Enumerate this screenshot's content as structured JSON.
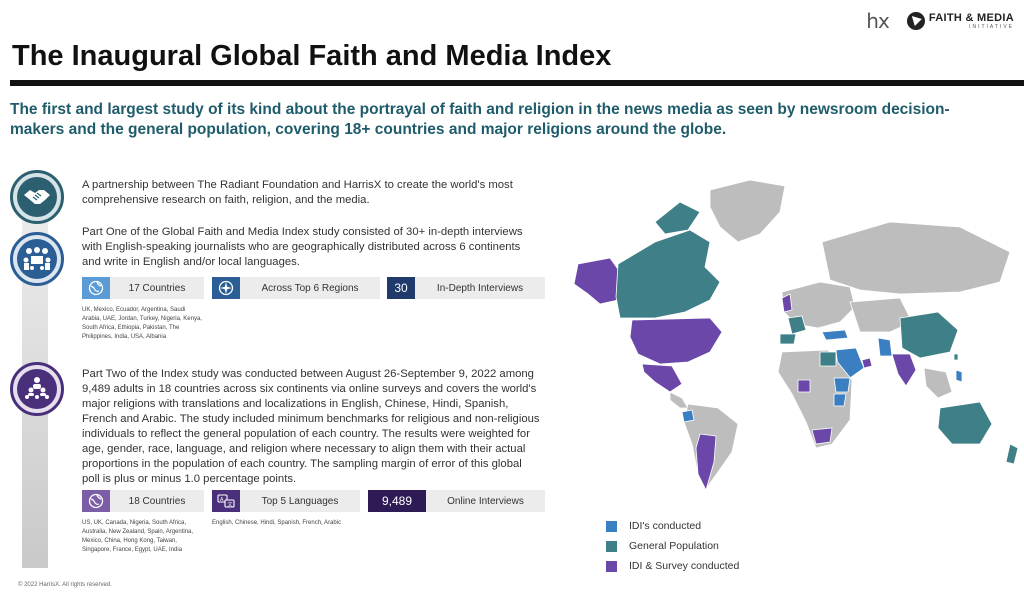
{
  "header": {
    "logo_hx": "hx",
    "logo_fm_line1": "FAITH & MEDIA",
    "logo_fm_line2": "INITIATIVE",
    "title": "The Inaugural Global Faith and Media Index",
    "subtitle": "The first and largest study of its kind about the portrayal of faith and religion in the news media as seen by newsroom decision-makers and the general population, covering 18+ countries and major religions around the globe."
  },
  "section1": {
    "text": "A partnership between The Radiant Foundation and HarrisX to create the world's most comprehensive research on faith, religion, and the media.",
    "icon": "handshake-icon"
  },
  "section2": {
    "text": "Part One of the Global Faith and Media Index study consisted of 30+ in-depth interviews with English-speaking journalists who are geographically distributed across 6 continents and write in English and/or local languages.",
    "icon": "group-meeting-icon",
    "stats": [
      {
        "badge_icon": "globe-icon",
        "label": "17 Countries",
        "color": "#5b9bd5"
      },
      {
        "badge_icon": "compass-icon",
        "label": "Across Top 6 Regions",
        "color": "#2a5e94"
      },
      {
        "badge_value": "30",
        "label": "In-Depth Interviews",
        "color": "#1f3a6b"
      }
    ],
    "countries": "UK, Mexico, Ecuador, Argentina, Saudi Arabia, UAE, Jordan, Turkey, Nigeria, Kenya, South Africa, Ethiopia, Pakistan, The Philippines, India, USA, Albania"
  },
  "section3": {
    "text": "Part Two of the Index study was conducted between August 26-September 9, 2022 among 9,489 adults in 18 countries across six continents via online surveys and covers the world's major religions with translations and localizations in English, Chinese, Hindi, Spanish, French and Arabic. The study included minimum benchmarks for religious and non-religious individuals to reflect the general population of each country. The results were weighted for age, gender, race, language, and religion where necessary to align them with their actual proportions in the population of each country. The sampling margin of error of this global poll is plus or minus 1.0 percentage points.",
    "icon": "hierarchy-people-icon",
    "stats": [
      {
        "badge_icon": "globe-icon",
        "label": "18 Countries",
        "color": "#7b5ea7"
      },
      {
        "badge_icon": "translate-icon",
        "label": "Top 5 Languages",
        "color": "#4a2f7a"
      },
      {
        "badge_value": "9,489",
        "label": "Online Interviews",
        "color": "#2e1b55"
      }
    ],
    "countries": "US, UK, Canada, Nigeria, South Africa, Australia, New Zealand, Spain, Argentina, Mexico, China, Hong Kong, Taiwan, Singapore, France, Egypt, UAE, India",
    "languages": "English, Chinese, Hindi, Spanish, French, Arabic"
  },
  "legend": [
    {
      "label": "IDI's conducted",
      "color": "#3a7fc1"
    },
    {
      "label": "General Population",
      "color": "#3f8088"
    },
    {
      "label": "IDI & Survey conducted",
      "color": "#6a47a8"
    }
  ],
  "footer": "© 2022 HarrisX. All rights reserved."
}
